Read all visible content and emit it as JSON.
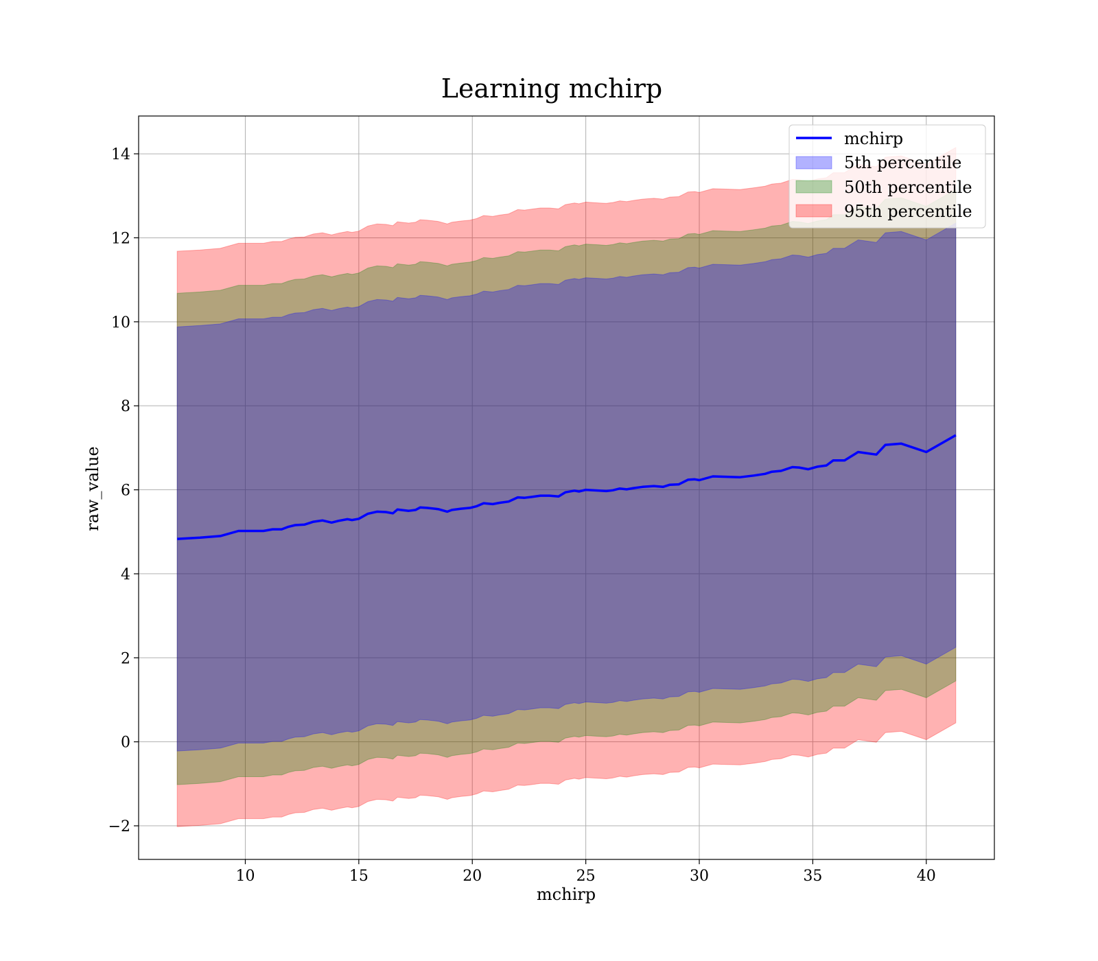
{
  "chart_data": {
    "type": "area",
    "title": "Learning mchirp",
    "xlabel": "mchirp",
    "ylabel": "raw_value",
    "xlim": [
      5.3,
      43.0
    ],
    "ylim": [
      -2.8,
      14.9
    ],
    "xticks": [
      10,
      15,
      20,
      25,
      30,
      35,
      40
    ],
    "yticks": [
      -2,
      0,
      2,
      4,
      6,
      8,
      10,
      12,
      14
    ],
    "ytick_labels": [
      "−2",
      "0",
      "2",
      "4",
      "6",
      "8",
      "10",
      "12",
      "14"
    ],
    "grid": true,
    "legend_position": "top-right",
    "colors": {
      "line": "#0000ff",
      "band_5": "#0000ff",
      "band_50": "#008000",
      "band_95": "#ff0000"
    },
    "x": [
      7.0,
      8.0,
      8.9,
      9.7,
      10.8,
      11.2,
      11.6,
      11.9,
      12.2,
      12.6,
      13.0,
      13.4,
      13.8,
      14.1,
      14.5,
      14.7,
      15.0,
      15.4,
      15.8,
      16.2,
      16.5,
      16.7,
      17.2,
      17.5,
      17.7,
      18.0,
      18.5,
      18.9,
      19.1,
      19.5,
      19.9,
      20.2,
      20.5,
      20.9,
      21.2,
      21.6,
      22.0,
      22.3,
      22.6,
      23.0,
      23.4,
      23.8,
      24.1,
      24.5,
      24.7,
      25.0,
      25.6,
      25.9,
      26.2,
      26.5,
      26.8,
      27.1,
      27.5,
      28.0,
      28.4,
      28.7,
      29.1,
      29.5,
      29.8,
      30.0,
      30.6,
      31.2,
      31.8,
      32.4,
      32.9,
      33.2,
      33.6,
      34.1,
      34.4,
      34.8,
      35.2,
      35.6,
      35.9,
      36.4,
      37.0,
      37.8,
      38.2,
      38.9,
      40.0,
      41.3
    ],
    "series": [
      {
        "name": "mchirp",
        "values": [
          4.83,
          4.86,
          4.9,
          5.02,
          5.02,
          5.06,
          5.06,
          5.12,
          5.16,
          5.17,
          5.24,
          5.27,
          5.22,
          5.26,
          5.3,
          5.28,
          5.31,
          5.43,
          5.48,
          5.47,
          5.44,
          5.53,
          5.5,
          5.52,
          5.58,
          5.57,
          5.54,
          5.48,
          5.52,
          5.55,
          5.57,
          5.61,
          5.68,
          5.66,
          5.69,
          5.72,
          5.82,
          5.81,
          5.83,
          5.86,
          5.86,
          5.84,
          5.94,
          5.98,
          5.96,
          6.0,
          5.98,
          5.97,
          5.99,
          6.03,
          6.01,
          6.04,
          6.07,
          6.09,
          6.07,
          6.12,
          6.13,
          6.24,
          6.25,
          6.23,
          6.32,
          6.31,
          6.3,
          6.34,
          6.38,
          6.43,
          6.45,
          6.54,
          6.53,
          6.49,
          6.55,
          6.58,
          6.7,
          6.7,
          6.9,
          6.84,
          7.07,
          7.1,
          6.9,
          7.3
        ]
      },
      {
        "name": "5th percentile",
        "lower_offset": 5.05,
        "upper_offset": 5.05
      },
      {
        "name": "50th percentile",
        "lower_offset": 5.85,
        "upper_offset": 5.85
      },
      {
        "name": "95th percentile",
        "lower_offset": 6.85,
        "upper_offset": 6.85
      }
    ]
  }
}
